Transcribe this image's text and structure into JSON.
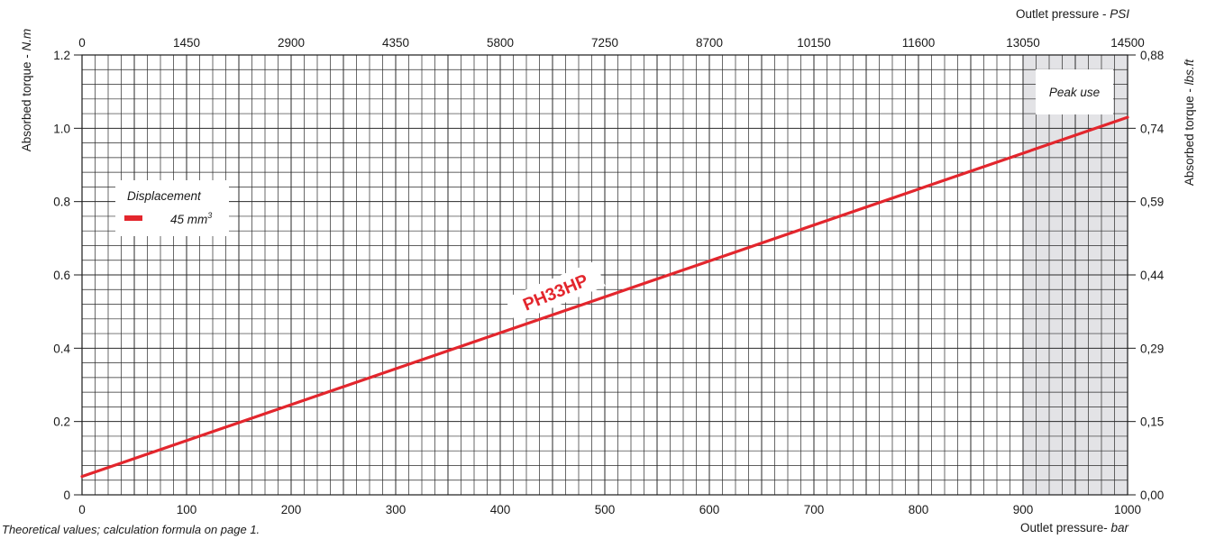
{
  "chart_data": {
    "type": "line",
    "x_bottom": {
      "label_text": "Outlet pressure- ",
      "label_unit": "bar",
      "range": [
        0,
        1000
      ],
      "ticks": [
        0,
        100,
        200,
        300,
        400,
        500,
        600,
        700,
        800,
        900,
        1000
      ],
      "tick_labels": [
        "0",
        "100",
        "200",
        "300",
        "400",
        "500",
        "600",
        "700",
        "800",
        "900",
        "1000"
      ]
    },
    "x_top": {
      "label_text": "Outlet pressure - ",
      "label_unit": "PSI",
      "tick_labels": [
        "0",
        "1450",
        "2900",
        "4350",
        "5800",
        "7250",
        "8700",
        "10150",
        "11600",
        "13050",
        "14500"
      ]
    },
    "y_left": {
      "label_text": "Absorbed torque - ",
      "label_unit": "N.m",
      "range": [
        0,
        1.2
      ],
      "ticks": [
        0,
        0.2,
        0.4,
        0.6,
        0.8,
        1.0,
        1.2
      ],
      "tick_labels": [
        "0",
        "0.2",
        "0.4",
        "0.6",
        "0.8",
        "1.0",
        "1.2"
      ]
    },
    "y_right": {
      "label_text": "Absorbed torque - ",
      "label_unit": "lbs.ft",
      "tick_labels": [
        "0,00",
        "0,15",
        "0,29",
        "0,44",
        "0,59",
        "0,74",
        "0,88"
      ]
    },
    "grid": true,
    "series": [
      {
        "name": "PH33HP",
        "color": "#e3262d",
        "x": [
          0,
          1000
        ],
        "y": [
          0.05,
          1.03
        ]
      }
    ],
    "shaded_region": {
      "label": "Peak use",
      "x_range": [
        900,
        1000
      ],
      "color": "#e3e3e6"
    },
    "legend": {
      "title": "Displacement",
      "entry_value": "45 mm",
      "entry_superscript": "3",
      "position": "middle-left"
    },
    "footnote": "Theoretical values; calculation formula on page 1."
  }
}
